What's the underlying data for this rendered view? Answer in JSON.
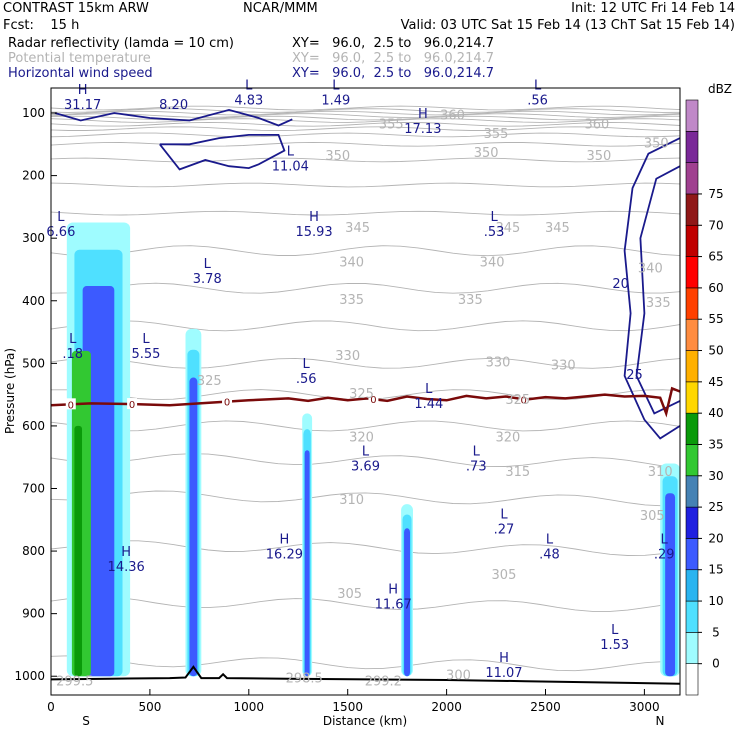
{
  "header": {
    "line1_left": "CONTRAST 15km ARW",
    "line1_center": "NCAR/MMM",
    "line1_right": "Init: 12 UTC Fri 14 Feb 14",
    "line2_left": "Fcst:    15 h",
    "line2_right": "Valid: 03 UTC Sat 15 Feb 14 (13 ChT Sat 15 Feb 14)",
    "field1_name": "Radar reflectivity (lamda = 10 cm)",
    "field1_xy": "XY=   96.0,  2.5 to   96.0,214.7",
    "field2_name": "Potential temperature",
    "field2_xy": "XY=   96.0,  2.5 to   96.0,214.7",
    "field3_name": "Horizontal wind speed",
    "field3_xy": "XY=   96.0,  2.5 to   96.0,214.7"
  },
  "colors": {
    "theta": "#b4b4b4",
    "wind": "#1a1a8c",
    "freezing_line": "#7a0a0a",
    "terrain": "#000000"
  },
  "chart_data": {
    "type": "contour",
    "xlabel": "Distance (km)",
    "ylabel": "Pressure (hPa)",
    "xlim": [
      0,
      3180
    ],
    "ylim": [
      1030,
      60
    ],
    "xticks": [
      0,
      500,
      1000,
      1500,
      2000,
      2500,
      3000
    ],
    "yticks": [
      100,
      200,
      300,
      400,
      500,
      600,
      700,
      800,
      900,
      1000
    ],
    "x_end_labels": {
      "left": "S",
      "right": "N"
    },
    "colorbar": {
      "unit": "dBZ",
      "levels": [
        0,
        5,
        10,
        15,
        20,
        25,
        30,
        35,
        40,
        45,
        50,
        55,
        60,
        65,
        70,
        75
      ],
      "colors": [
        "#ffffff",
        "#9ffcff",
        "#4fe0ff",
        "#2ab4f0",
        "#3c5aff",
        "#2020e0",
        "#4682b4",
        "#32c832",
        "#0a9a0a",
        "#ffd700",
        "#ffb000",
        "#ff8c40",
        "#ff4000",
        "#ff0000",
        "#c00000",
        "#901818",
        "#a04090",
        "#7a2898",
        "#c088c8"
      ]
    },
    "reflectivity_columns": [
      {
        "x0": 80,
        "x1": 400,
        "top": 275,
        "bottom": 1000
      },
      {
        "x0": 680,
        "x1": 760,
        "top": 445,
        "bottom": 1000
      },
      {
        "x0": 1270,
        "x1": 1320,
        "top": 580,
        "bottom": 1000
      },
      {
        "x0": 1770,
        "x1": 1830,
        "top": 725,
        "bottom": 1000
      },
      {
        "x0": 3080,
        "x1": 3180,
        "top": 660,
        "bottom": 1000
      }
    ],
    "theta_labels": [
      {
        "x": 1720,
        "p": 125,
        "text": "355"
      },
      {
        "x": 2030,
        "p": 110,
        "text": "360"
      },
      {
        "x": 2250,
        "p": 140,
        "text": "355"
      },
      {
        "x": 2760,
        "p": 125,
        "text": "360"
      },
      {
        "x": 1450,
        "p": 175,
        "text": "350"
      },
      {
        "x": 2200,
        "p": 170,
        "text": "350"
      },
      {
        "x": 2770,
        "p": 175,
        "text": "350"
      },
      {
        "x": 3060,
        "p": 155,
        "text": "350"
      },
      {
        "x": 1550,
        "p": 290,
        "text": "345"
      },
      {
        "x": 2310,
        "p": 290,
        "text": "345"
      },
      {
        "x": 2560,
        "p": 290,
        "text": "345"
      },
      {
        "x": 1520,
        "p": 345,
        "text": "340"
      },
      {
        "x": 2230,
        "p": 345,
        "text": "340"
      },
      {
        "x": 3030,
        "p": 355,
        "text": "340"
      },
      {
        "x": 1520,
        "p": 405,
        "text": "335"
      },
      {
        "x": 2120,
        "p": 405,
        "text": "335"
      },
      {
        "x": 3070,
        "p": 410,
        "text": "335"
      },
      {
        "x": 1500,
        "p": 495,
        "text": "330"
      },
      {
        "x": 2260,
        "p": 505,
        "text": "330"
      },
      {
        "x": 2590,
        "p": 510,
        "text": "330"
      },
      {
        "x": 800,
        "p": 535,
        "text": "325"
      },
      {
        "x": 1570,
        "p": 555,
        "text": "325"
      },
      {
        "x": 2360,
        "p": 565,
        "text": "325"
      },
      {
        "x": 1570,
        "p": 625,
        "text": "320"
      },
      {
        "x": 2310,
        "p": 625,
        "text": "320"
      },
      {
        "x": 2360,
        "p": 680,
        "text": "315"
      },
      {
        "x": 3080,
        "p": 680,
        "text": "310"
      },
      {
        "x": 1520,
        "p": 725,
        "text": "310"
      },
      {
        "x": 3040,
        "p": 750,
        "text": "305"
      },
      {
        "x": 2290,
        "p": 845,
        "text": "305"
      },
      {
        "x": 1510,
        "p": 875,
        "text": "305"
      },
      {
        "x": 120,
        "p": 1015,
        "text": "299.5"
      },
      {
        "x": 1280,
        "p": 1010,
        "text": "298.5"
      },
      {
        "x": 1680,
        "p": 1015,
        "text": "299.2"
      },
      {
        "x": 2060,
        "p": 1005,
        "text": "300"
      }
    ],
    "wind_contour_labels": [
      {
        "x": 2880,
        "p": 380,
        "text": "20"
      },
      {
        "x": 2950,
        "p": 525,
        "text": "25"
      }
    ],
    "wind_extrema": [
      {
        "x": 160,
        "p": 92,
        "kind": "H",
        "value": "31.17"
      },
      {
        "x": 620,
        "p": 92,
        "kind": "",
        "value": "8.20"
      },
      {
        "x": 1000,
        "p": 85,
        "kind": "L",
        "value": "4.83"
      },
      {
        "x": 1440,
        "p": 85,
        "kind": "L",
        "value": "1.49"
      },
      {
        "x": 2460,
        "p": 85,
        "kind": "L",
        "value": ".56"
      },
      {
        "x": 1880,
        "p": 130,
        "kind": "H",
        "value": "17.13"
      },
      {
        "x": 1210,
        "p": 190,
        "kind": "L",
        "value": "11.04"
      },
      {
        "x": 1330,
        "p": 295,
        "kind": "H",
        "value": "15.93"
      },
      {
        "x": 2240,
        "p": 295,
        "kind": "L",
        "value": ".53"
      },
      {
        "x": 50,
        "p": 295,
        "kind": "L",
        "value": "6.66"
      },
      {
        "x": 790,
        "p": 370,
        "kind": "L",
        "value": "3.78"
      },
      {
        "x": 480,
        "p": 490,
        "kind": "L",
        "value": "5.55"
      },
      {
        "x": 110,
        "p": 490,
        "kind": "L",
        "value": ".18"
      },
      {
        "x": 1290,
        "p": 530,
        "kind": "L",
        "value": ".56"
      },
      {
        "x": 1910,
        "p": 570,
        "kind": "L",
        "value": "1.44"
      },
      {
        "x": 1590,
        "p": 670,
        "kind": "L",
        "value": "3.69"
      },
      {
        "x": 2150,
        "p": 670,
        "kind": "L",
        "value": ".73"
      },
      {
        "x": 2290,
        "p": 770,
        "kind": "L",
        "value": ".27"
      },
      {
        "x": 2520,
        "p": 810,
        "kind": "L",
        "value": ".48"
      },
      {
        "x": 3100,
        "p": 810,
        "kind": "L",
        "value": ".29"
      },
      {
        "x": 380,
        "p": 830,
        "kind": "H",
        "value": "14.36"
      },
      {
        "x": 1180,
        "p": 810,
        "kind": "H",
        "value": "16.29"
      },
      {
        "x": 1730,
        "p": 890,
        "kind": "H",
        "value": "11.67"
      },
      {
        "x": 2850,
        "p": 955,
        "kind": "L",
        "value": "1.53"
      },
      {
        "x": 2290,
        "p": 1000,
        "kind": "H",
        "value": "11.07"
      }
    ],
    "freezing_level": {
      "label": "0",
      "label_x": [
        100,
        410,
        890,
        1630,
        2390
      ],
      "points": [
        [
          0,
          567
        ],
        [
          200,
          564
        ],
        [
          400,
          565
        ],
        [
          600,
          567
        ],
        [
          800,
          563
        ],
        [
          1000,
          559
        ],
        [
          1200,
          556
        ],
        [
          1300,
          560
        ],
        [
          1400,
          555
        ],
        [
          1500,
          559
        ],
        [
          1600,
          556
        ],
        [
          1700,
          560
        ],
        [
          1800,
          553
        ],
        [
          1900,
          557
        ],
        [
          2000,
          559
        ],
        [
          2100,
          552
        ],
        [
          2200,
          556
        ],
        [
          2300,
          553
        ],
        [
          2400,
          558
        ],
        [
          2500,
          554
        ],
        [
          2600,
          556
        ],
        [
          2700,
          553
        ],
        [
          2800,
          550
        ],
        [
          2900,
          553
        ],
        [
          3000,
          552
        ],
        [
          3080,
          555
        ],
        [
          3110,
          580
        ],
        [
          3140,
          540
        ],
        [
          3180,
          545
        ]
      ]
    },
    "terrain": {
      "points": [
        [
          0,
          1005
        ],
        [
          300,
          1004
        ],
        [
          600,
          1003
        ],
        [
          680,
          1002
        ],
        [
          720,
          985
        ],
        [
          760,
          1003
        ],
        [
          850,
          1003
        ],
        [
          870,
          997
        ],
        [
          890,
          1003
        ],
        [
          1200,
          1004
        ],
        [
          1600,
          1005
        ],
        [
          2000,
          1006
        ],
        [
          2400,
          1008
        ],
        [
          2800,
          1010
        ],
        [
          3180,
          1012
        ]
      ]
    }
  }
}
